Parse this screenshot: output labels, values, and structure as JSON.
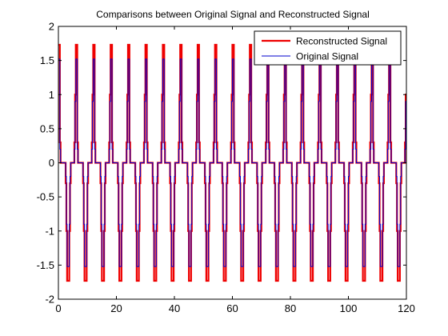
{
  "chart_data": {
    "type": "line",
    "title": "Comparisons between Original Signal and Reconstructed Signal",
    "xlabel": "",
    "ylabel": "",
    "xlim": [
      0,
      120
    ],
    "ylim": [
      -2,
      2
    ],
    "xticks": [
      0,
      20,
      40,
      60,
      80,
      100,
      120
    ],
    "yticks": [
      -2,
      -1.5,
      -1,
      -0.5,
      0,
      0.5,
      1,
      1.5,
      2
    ],
    "grid": false,
    "legend_position": "top-right",
    "period": 6,
    "samples_per_unit": 4,
    "series": [
      {
        "name": "Reconstructed Signal",
        "color": "#ee0000",
        "cycle": {
          "x": [
            0,
            0.25,
            0.5,
            0.75,
            1,
            1.25,
            1.5,
            1.75,
            2,
            2.25,
            2.5,
            2.75,
            3,
            3.25,
            3.5,
            3.75,
            4,
            4.25,
            4.5,
            4.75,
            5,
            5.25,
            5.5,
            5.75
          ],
          "y": [
            1.73,
            1.73,
            0.3,
            0,
            0,
            0,
            0,
            0,
            0,
            0,
            -0.3,
            -1.0,
            -1.73,
            -1.73,
            -1.73,
            -1.0,
            -0.3,
            0,
            0,
            0,
            0,
            0,
            0.3,
            1.0
          ]
        }
      },
      {
        "name": "Original Signal",
        "color": "#0000cc",
        "cycle": {
          "x": [
            0,
            0.25,
            0.5,
            0.75,
            1,
            1.25,
            1.5,
            1.75,
            2,
            2.25,
            2.5,
            2.75,
            3,
            3.25,
            3.5,
            3.75,
            4,
            4.25,
            4.5,
            4.75,
            5,
            5.25,
            5.5,
            5.75
          ],
          "y": [
            1.52,
            1.52,
            0.2,
            0,
            0,
            0,
            0,
            0,
            0,
            0,
            -0.2,
            -0.9,
            -1.52,
            -1.52,
            -1.52,
            -0.9,
            -0.2,
            0,
            0,
            0,
            0,
            0,
            0.2,
            0.9
          ]
        }
      }
    ]
  }
}
